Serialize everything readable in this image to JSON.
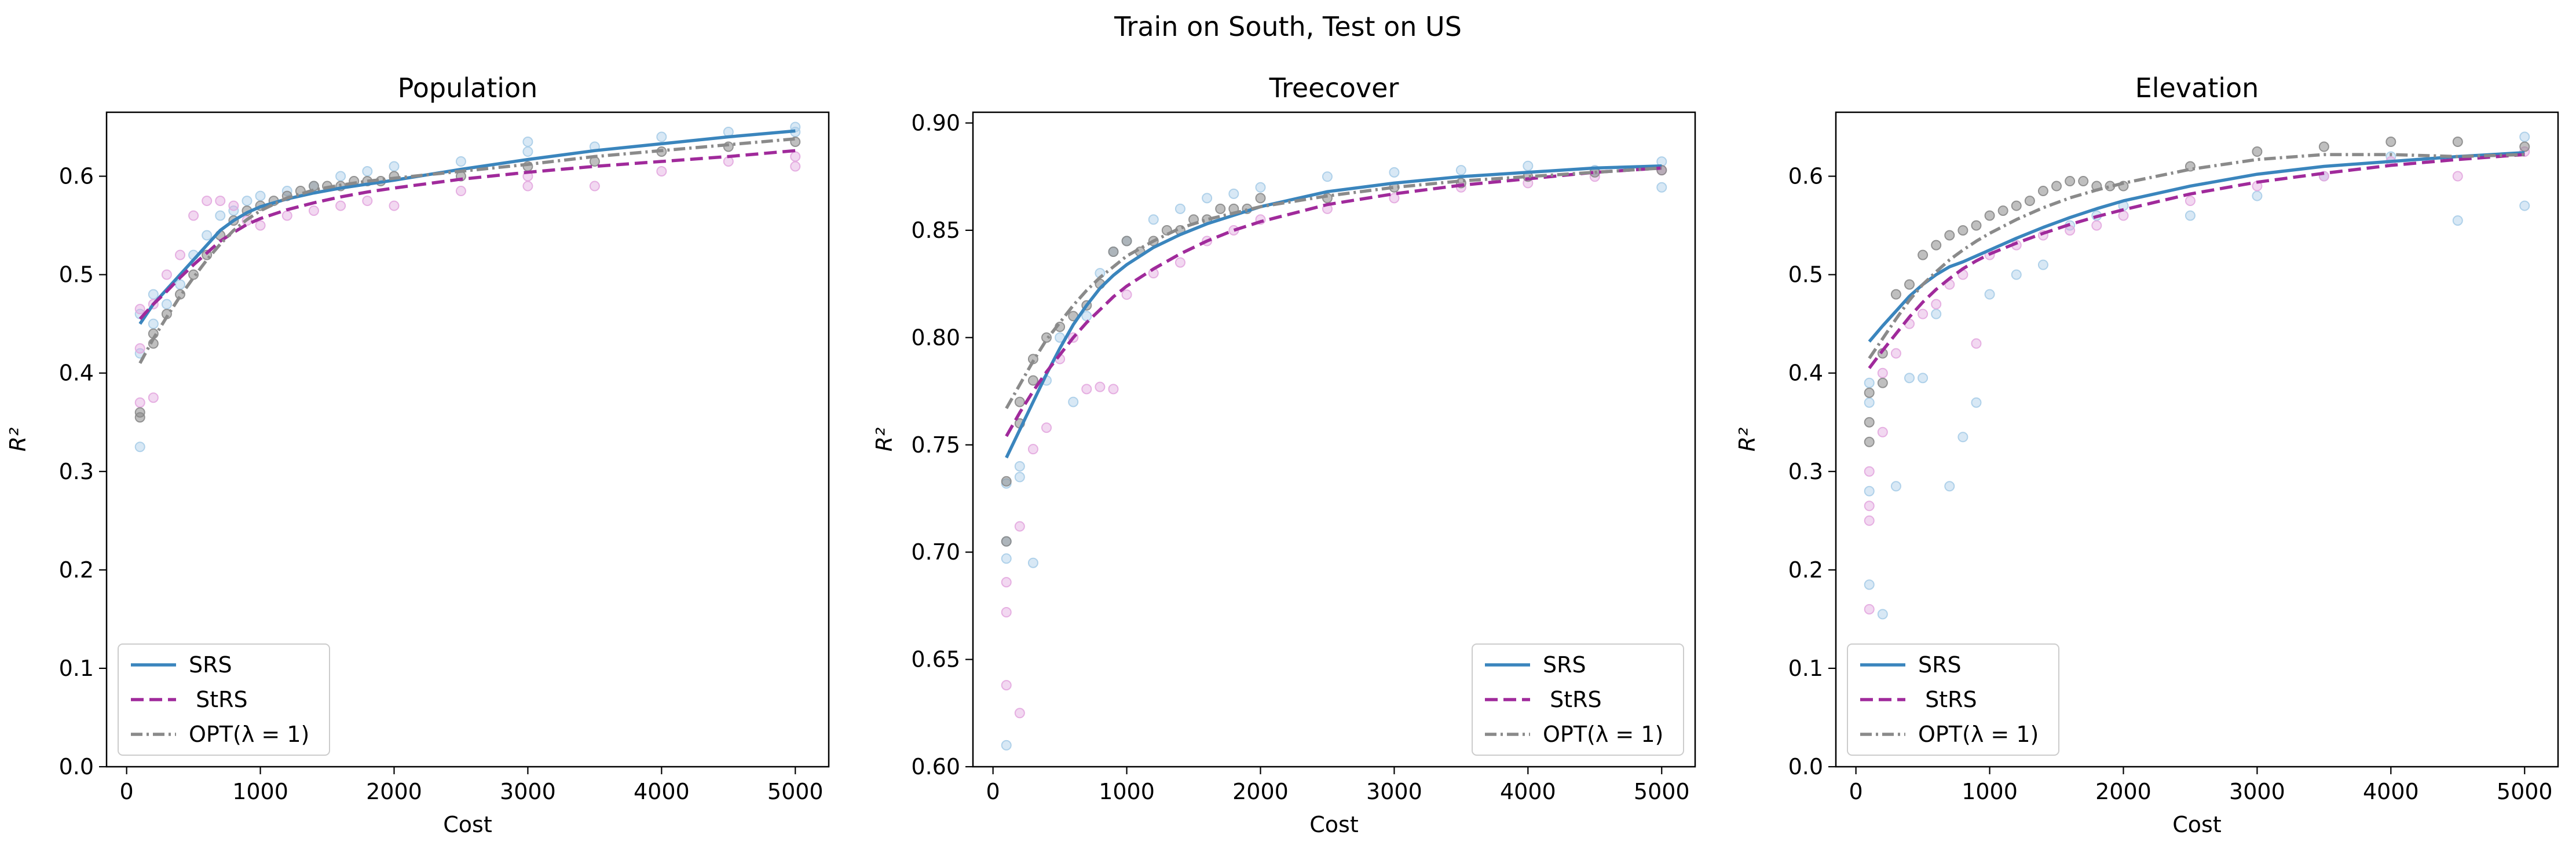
{
  "figure": {
    "suptitle": "Train on South, Test on US"
  },
  "colors": {
    "SRS": "#3a85bd",
    "StRS": "#a02a9b",
    "OPT": "#8a8a8a",
    "SRS_points": "#a9cde8",
    "StRS_points": "#e3a9df",
    "OPT_points": "#8a8a8a"
  },
  "chart_data": [
    {
      "type": "line",
      "title": "Population",
      "xlabel": "Cost",
      "ylabel": "R²",
      "xlim": [
        -150,
        5250
      ],
      "ylim": [
        0.0,
        0.665
      ],
      "xticks": [
        0,
        1000,
        2000,
        3000,
        4000,
        5000
      ],
      "yticks": [
        0.0,
        0.1,
        0.2,
        0.3,
        0.4,
        0.5,
        0.6
      ],
      "ytick_labels": [
        "0.0",
        "0.1",
        "0.2",
        "0.3",
        "0.4",
        "0.5",
        "0.6"
      ],
      "legend_position": "lower-left",
      "series": [
        {
          "name": "SRS",
          "style": "solid",
          "x": [
            100,
            200,
            300,
            400,
            500,
            600,
            700,
            800,
            900,
            1000,
            1200,
            1400,
            1600,
            1800,
            2000,
            2500,
            3000,
            3500,
            4000,
            4500,
            5000
          ],
          "y": [
            0.45,
            0.47,
            0.485,
            0.5,
            0.515,
            0.53,
            0.545,
            0.555,
            0.563,
            0.569,
            0.577,
            0.583,
            0.588,
            0.592,
            0.596,
            0.607,
            0.617,
            0.626,
            0.633,
            0.64,
            0.646
          ]
        },
        {
          "name": " StRS",
          "style": "dashed",
          "x": [
            100,
            200,
            300,
            400,
            500,
            600,
            700,
            800,
            900,
            1000,
            1200,
            1400,
            1600,
            1800,
            2000,
            2500,
            3000,
            3500,
            4000,
            4500,
            5000
          ],
          "y": [
            0.455,
            0.47,
            0.483,
            0.497,
            0.51,
            0.522,
            0.534,
            0.543,
            0.551,
            0.557,
            0.566,
            0.573,
            0.579,
            0.584,
            0.588,
            0.597,
            0.604,
            0.61,
            0.615,
            0.62,
            0.626
          ]
        },
        {
          "name": "OPT(λ = 1)",
          "style": "dashdot",
          "x": [
            100,
            200,
            300,
            400,
            500,
            600,
            700,
            800,
            900,
            1000,
            1200,
            1400,
            1600,
            1800,
            2000,
            2500,
            3000,
            3500,
            4000,
            4500,
            5000
          ],
          "y": [
            0.41,
            0.435,
            0.457,
            0.478,
            0.497,
            0.515,
            0.531,
            0.545,
            0.556,
            0.565,
            0.578,
            0.586,
            0.591,
            0.595,
            0.598,
            0.605,
            0.612,
            0.62,
            0.626,
            0.632,
            0.638
          ]
        }
      ],
      "scatter": [
        {
          "series": "SRS",
          "x": [
            100,
            100,
            100,
            200,
            200,
            300,
            400,
            500,
            600,
            700,
            800,
            900,
            1000,
            1200,
            1400,
            1600,
            1800,
            2000,
            2500,
            3000,
            3000,
            3500,
            4000,
            4500,
            5000,
            5000
          ],
          "y": [
            0.325,
            0.42,
            0.46,
            0.45,
            0.48,
            0.47,
            0.49,
            0.52,
            0.54,
            0.56,
            0.565,
            0.575,
            0.58,
            0.585,
            0.59,
            0.6,
            0.605,
            0.61,
            0.615,
            0.625,
            0.635,
            0.63,
            0.64,
            0.645,
            0.645,
            0.65
          ]
        },
        {
          "series": " StRS",
          "x": [
            100,
            100,
            100,
            200,
            200,
            300,
            400,
            500,
            600,
            700,
            800,
            900,
            1000,
            1200,
            1400,
            1600,
            1800,
            2000,
            2500,
            3000,
            3000,
            3500,
            4000,
            4500,
            5000,
            5000
          ],
          "y": [
            0.37,
            0.425,
            0.465,
            0.375,
            0.47,
            0.5,
            0.52,
            0.56,
            0.575,
            0.575,
            0.57,
            0.555,
            0.55,
            0.56,
            0.565,
            0.57,
            0.575,
            0.57,
            0.585,
            0.59,
            0.6,
            0.59,
            0.605,
            0.615,
            0.61,
            0.62
          ]
        },
        {
          "series": "OPT(λ = 1)",
          "x": [
            100,
            100,
            200,
            200,
            300,
            400,
            500,
            600,
            700,
            800,
            900,
            1000,
            1100,
            1200,
            1300,
            1400,
            1500,
            1600,
            1700,
            1800,
            1900,
            2000,
            2500,
            3000,
            3500,
            4000,
            4500,
            5000
          ],
          "y": [
            0.355,
            0.36,
            0.43,
            0.44,
            0.46,
            0.48,
            0.5,
            0.52,
            0.54,
            0.555,
            0.565,
            0.57,
            0.575,
            0.58,
            0.585,
            0.59,
            0.59,
            0.59,
            0.595,
            0.595,
            0.595,
            0.6,
            0.6,
            0.61,
            0.615,
            0.625,
            0.63,
            0.635
          ]
        }
      ]
    },
    {
      "type": "line",
      "title": "Treecover",
      "xlabel": "Cost",
      "ylabel": "R²",
      "xlim": [
        -150,
        5250
      ],
      "ylim": [
        0.6,
        0.905
      ],
      "xticks": [
        0,
        1000,
        2000,
        3000,
        4000,
        5000
      ],
      "yticks": [
        0.6,
        0.65,
        0.7,
        0.75,
        0.8,
        0.85,
        0.9
      ],
      "ytick_labels": [
        "0.60",
        "0.65",
        "0.70",
        "0.75",
        "0.80",
        "0.85",
        "0.90"
      ],
      "legend_position": "lower-right",
      "series": [
        {
          "name": "SRS",
          "style": "solid",
          "x": [
            100,
            200,
            300,
            400,
            500,
            600,
            700,
            800,
            900,
            1000,
            1200,
            1400,
            1600,
            1800,
            2000,
            2500,
            3000,
            3500,
            4000,
            4500,
            5000
          ],
          "y": [
            0.744,
            0.757,
            0.77,
            0.783,
            0.795,
            0.806,
            0.815,
            0.823,
            0.829,
            0.834,
            0.842,
            0.848,
            0.853,
            0.857,
            0.861,
            0.868,
            0.872,
            0.875,
            0.877,
            0.879,
            0.88
          ]
        },
        {
          "name": " StRS",
          "style": "dashed",
          "x": [
            100,
            200,
            300,
            400,
            500,
            600,
            700,
            800,
            900,
            1000,
            1200,
            1400,
            1600,
            1800,
            2000,
            2500,
            3000,
            3500,
            4000,
            4500,
            5000
          ],
          "y": [
            0.754,
            0.765,
            0.775,
            0.784,
            0.792,
            0.8,
            0.807,
            0.813,
            0.819,
            0.824,
            0.832,
            0.839,
            0.845,
            0.85,
            0.854,
            0.862,
            0.867,
            0.871,
            0.874,
            0.877,
            0.879
          ]
        },
        {
          "name": "OPT(λ = 1)",
          "style": "dashdot",
          "x": [
            100,
            200,
            300,
            400,
            500,
            600,
            700,
            800,
            900,
            1000,
            1200,
            1400,
            1600,
            1800,
            2000,
            2500,
            3000,
            3500,
            4000,
            4500,
            5000
          ],
          "y": [
            0.767,
            0.778,
            0.789,
            0.799,
            0.807,
            0.815,
            0.822,
            0.828,
            0.833,
            0.838,
            0.845,
            0.851,
            0.855,
            0.858,
            0.861,
            0.866,
            0.87,
            0.873,
            0.875,
            0.877,
            0.879
          ]
        }
      ],
      "scatter": [
        {
          "series": "SRS",
          "x": [
            100,
            100,
            100,
            100,
            200,
            200,
            300,
            400,
            500,
            600,
            700,
            800,
            900,
            1000,
            1200,
            1400,
            1600,
            1800,
            2000,
            2500,
            3000,
            3500,
            4000,
            4500,
            5000,
            5000
          ],
          "y": [
            0.61,
            0.697,
            0.705,
            0.732,
            0.735,
            0.74,
            0.695,
            0.78,
            0.8,
            0.77,
            0.81,
            0.83,
            0.84,
            0.845,
            0.855,
            0.86,
            0.865,
            0.867,
            0.87,
            0.875,
            0.877,
            0.878,
            0.88,
            0.878,
            0.87,
            0.882
          ]
        },
        {
          "series": " StRS",
          "x": [
            100,
            100,
            100,
            200,
            200,
            300,
            400,
            500,
            600,
            700,
            800,
            900,
            1000,
            1200,
            1400,
            1600,
            1800,
            2000,
            2500,
            3000,
            3500,
            4000,
            4500,
            5000
          ],
          "y": [
            0.638,
            0.672,
            0.686,
            0.625,
            0.712,
            0.748,
            0.758,
            0.79,
            0.8,
            0.776,
            0.777,
            0.776,
            0.82,
            0.83,
            0.835,
            0.845,
            0.85,
            0.855,
            0.86,
            0.865,
            0.87,
            0.872,
            0.875,
            0.878
          ]
        },
        {
          "series": "OPT(λ = 1)",
          "x": [
            100,
            100,
            200,
            200,
            300,
            300,
            400,
            500,
            600,
            700,
            800,
            900,
            1000,
            1100,
            1200,
            1300,
            1400,
            1500,
            1600,
            1700,
            1800,
            1900,
            2000,
            2500,
            3000,
            3500,
            4000,
            4500,
            5000
          ],
          "y": [
            0.705,
            0.733,
            0.76,
            0.77,
            0.78,
            0.79,
            0.8,
            0.805,
            0.81,
            0.815,
            0.825,
            0.84,
            0.845,
            0.84,
            0.845,
            0.85,
            0.85,
            0.855,
            0.855,
            0.86,
            0.86,
            0.86,
            0.865,
            0.865,
            0.87,
            0.872,
            0.875,
            0.877,
            0.878
          ]
        }
      ]
    },
    {
      "type": "line",
      "title": "Elevation",
      "xlabel": "Cost",
      "ylabel": "R²",
      "xlim": [
        -150,
        5250
      ],
      "ylim": [
        0.0,
        0.665
      ],
      "xticks": [
        0,
        1000,
        2000,
        3000,
        4000,
        5000
      ],
      "yticks": [
        0.0,
        0.1,
        0.2,
        0.3,
        0.4,
        0.5,
        0.6
      ],
      "ytick_labels": [
        "0.0",
        "0.1",
        "0.2",
        "0.3",
        "0.4",
        "0.5",
        "0.6"
      ],
      "legend_position": "lower-left",
      "series": [
        {
          "name": "SRS",
          "style": "solid",
          "x": [
            100,
            200,
            300,
            400,
            500,
            600,
            700,
            800,
            900,
            1000,
            1200,
            1400,
            1600,
            1800,
            2000,
            2500,
            3000,
            3500,
            4000,
            4500,
            5000
          ],
          "y": [
            0.432,
            0.448,
            0.463,
            0.478,
            0.49,
            0.5,
            0.508,
            0.513,
            0.519,
            0.525,
            0.537,
            0.548,
            0.558,
            0.567,
            0.575,
            0.59,
            0.602,
            0.61,
            0.615,
            0.62,
            0.624
          ]
        },
        {
          "name": " StRS",
          "style": "dashed",
          "x": [
            100,
            200,
            300,
            400,
            500,
            600,
            700,
            800,
            900,
            1000,
            1200,
            1400,
            1600,
            1800,
            2000,
            2500,
            3000,
            3500,
            4000,
            4500,
            5000
          ],
          "y": [
            0.405,
            0.423,
            0.44,
            0.457,
            0.472,
            0.485,
            0.496,
            0.506,
            0.514,
            0.521,
            0.532,
            0.542,
            0.551,
            0.559,
            0.566,
            0.582,
            0.594,
            0.603,
            0.611,
            0.617,
            0.622
          ]
        },
        {
          "name": "OPT(λ = 1)",
          "style": "dashdot",
          "x": [
            100,
            200,
            300,
            400,
            500,
            600,
            700,
            800,
            900,
            1000,
            1200,
            1400,
            1600,
            1800,
            2000,
            2500,
            3000,
            3500,
            4000,
            4500,
            5000
          ],
          "y": [
            0.415,
            0.435,
            0.455,
            0.474,
            0.49,
            0.503,
            0.515,
            0.525,
            0.534,
            0.542,
            0.556,
            0.568,
            0.578,
            0.586,
            0.593,
            0.607,
            0.617,
            0.622,
            0.622,
            0.62,
            0.622
          ]
        }
      ],
      "scatter": [
        {
          "series": "SRS",
          "x": [
            100,
            100,
            100,
            100,
            200,
            300,
            400,
            500,
            600,
            700,
            800,
            900,
            1000,
            1200,
            1400,
            1600,
            1800,
            2000,
            2500,
            3000,
            3500,
            4000,
            4500,
            5000,
            5000
          ],
          "y": [
            0.185,
            0.28,
            0.37,
            0.39,
            0.155,
            0.285,
            0.395,
            0.395,
            0.46,
            0.285,
            0.335,
            0.37,
            0.48,
            0.5,
            0.51,
            0.55,
            0.56,
            0.57,
            0.56,
            0.58,
            0.6,
            0.62,
            0.555,
            0.57,
            0.64
          ]
        },
        {
          "series": " StRS",
          "x": [
            100,
            100,
            100,
            100,
            200,
            200,
            300,
            400,
            500,
            600,
            700,
            800,
            900,
            1000,
            1200,
            1400,
            1600,
            1800,
            2000,
            2500,
            3000,
            3500,
            4000,
            4500,
            5000
          ],
          "y": [
            0.16,
            0.25,
            0.265,
            0.3,
            0.34,
            0.4,
            0.42,
            0.45,
            0.46,
            0.47,
            0.49,
            0.5,
            0.43,
            0.52,
            0.53,
            0.54,
            0.545,
            0.55,
            0.56,
            0.575,
            0.59,
            0.6,
            0.615,
            0.6,
            0.625
          ]
        },
        {
          "series": "OPT(λ = 1)",
          "x": [
            100,
            100,
            100,
            200,
            200,
            300,
            400,
            500,
            600,
            700,
            800,
            900,
            1000,
            1100,
            1200,
            1300,
            1400,
            1500,
            1600,
            1700,
            1800,
            1900,
            2000,
            2500,
            3000,
            3500,
            4000,
            4500,
            5000
          ],
          "y": [
            0.33,
            0.35,
            0.38,
            0.39,
            0.42,
            0.48,
            0.49,
            0.52,
            0.53,
            0.54,
            0.545,
            0.55,
            0.56,
            0.565,
            0.57,
            0.575,
            0.585,
            0.59,
            0.595,
            0.595,
            0.59,
            0.59,
            0.59,
            0.61,
            0.625,
            0.63,
            0.635,
            0.635,
            0.63
          ]
        }
      ]
    }
  ]
}
